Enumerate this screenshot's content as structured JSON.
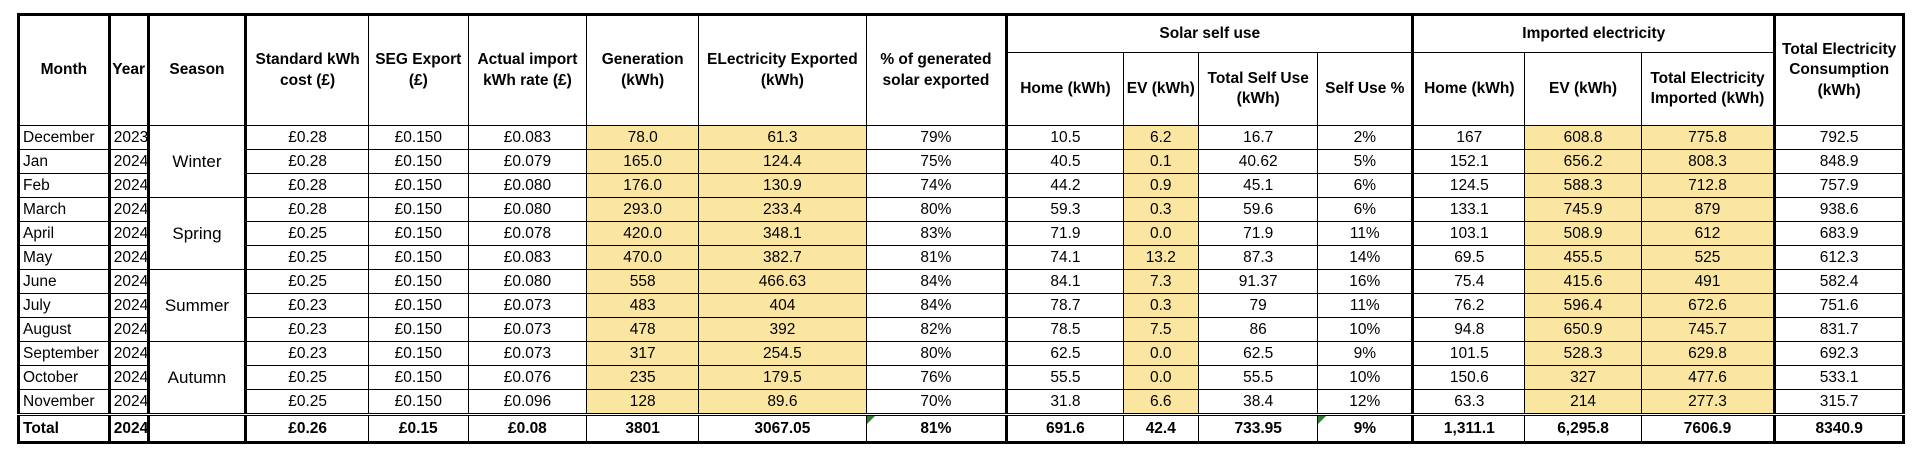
{
  "headers": {
    "month": "Month",
    "year": "Year",
    "season": "Season",
    "standard_cost": "Standard kWh cost (£)",
    "seg_export": "SEG Export (£)",
    "import_rate": "Actual import kWh rate (£)",
    "generation": "Generation (kWh)",
    "exported": "ELectricity Exported (kWh)",
    "pct_exported": "% of generated solar exported",
    "solar_group": "Solar self use",
    "imported_group": "Imported electricity",
    "total_consumption": "Total Electricity Consumption (kWh)",
    "solar_home": "Home (kWh)",
    "solar_ev": "EV (kWh)",
    "solar_total": "Total Self Use (kWh)",
    "self_use_pct": "Self Use %",
    "imp_home": "Home (kWh)",
    "imp_ev": "EV (kWh)",
    "imp_total": "Total Electricity Imported (kWh)"
  },
  "seasons": [
    "Winter",
    "Spring",
    "Summer",
    "Autumn"
  ],
  "rows": [
    [
      "December",
      "2023",
      "£0.28",
      "£0.150",
      "£0.083",
      "78.0",
      "61.3",
      "79%",
      "10.5",
      "6.2",
      "16.7",
      "2%",
      "167",
      "608.8",
      "775.8",
      "792.5"
    ],
    [
      "Jan",
      "2024",
      "£0.28",
      "£0.150",
      "£0.079",
      "165.0",
      "124.4",
      "75%",
      "40.5",
      "0.1",
      "40.62",
      "5%",
      "152.1",
      "656.2",
      "808.3",
      "848.9"
    ],
    [
      "Feb",
      "2024",
      "£0.28",
      "£0.150",
      "£0.080",
      "176.0",
      "130.9",
      "74%",
      "44.2",
      "0.9",
      "45.1",
      "6%",
      "124.5",
      "588.3",
      "712.8",
      "757.9"
    ],
    [
      "March",
      "2024",
      "£0.28",
      "£0.150",
      "£0.080",
      "293.0",
      "233.4",
      "80%",
      "59.3",
      "0.3",
      "59.6",
      "6%",
      "133.1",
      "745.9",
      "879",
      "938.6"
    ],
    [
      "April",
      "2024",
      "£0.25",
      "£0.150",
      "£0.078",
      "420.0",
      "348.1",
      "83%",
      "71.9",
      "0.0",
      "71.9",
      "11%",
      "103.1",
      "508.9",
      "612",
      "683.9"
    ],
    [
      "May",
      "2024",
      "£0.25",
      "£0.150",
      "£0.083",
      "470.0",
      "382.7",
      "81%",
      "74.1",
      "13.2",
      "87.3",
      "14%",
      "69.5",
      "455.5",
      "525",
      "612.3"
    ],
    [
      "June",
      "2024",
      "£0.25",
      "£0.150",
      "£0.080",
      "558",
      "466.63",
      "84%",
      "84.1",
      "7.3",
      "91.37",
      "16%",
      "75.4",
      "415.6",
      "491",
      "582.4"
    ],
    [
      "July",
      "2024",
      "£0.23",
      "£0.150",
      "£0.073",
      "483",
      "404",
      "84%",
      "78.7",
      "0.3",
      "79",
      "11%",
      "76.2",
      "596.4",
      "672.6",
      "751.6"
    ],
    [
      "August",
      "2024",
      "£0.23",
      "£0.150",
      "£0.073",
      "478",
      "392",
      "82%",
      "78.5",
      "7.5",
      "86",
      "10%",
      "94.8",
      "650.9",
      "745.7",
      "831.7"
    ],
    [
      "September",
      "2024",
      "£0.23",
      "£0.150",
      "£0.073",
      "317",
      "254.5",
      "80%",
      "62.5",
      "0.0",
      "62.5",
      "9%",
      "101.5",
      "528.3",
      "629.8",
      "692.3"
    ],
    [
      "October",
      "2024",
      "£0.25",
      "£0.150",
      "£0.076",
      "235",
      "179.5",
      "76%",
      "55.5",
      "0.0",
      "55.5",
      "10%",
      "150.6",
      "327",
      "477.6",
      "533.1"
    ],
    [
      "November",
      "2024",
      "£0.25",
      "£0.150",
      "£0.096",
      "128",
      "89.6",
      "70%",
      "31.8",
      "6.6",
      "38.4",
      "12%",
      "63.3",
      "214",
      "277.3",
      "315.7"
    ]
  ],
  "total": [
    "Total",
    "2024",
    "",
    "£0.26",
    "£0.15",
    "£0.08",
    "3801",
    "3067.05",
    "81%",
    "691.6",
    "42.4",
    "733.95",
    "9%",
    "1,311.1",
    "6,295.8",
    "7606.9",
    "8340.9"
  ],
  "colors": {
    "highlight": "#fbe6a1",
    "error_marker": "#2e7d32"
  }
}
